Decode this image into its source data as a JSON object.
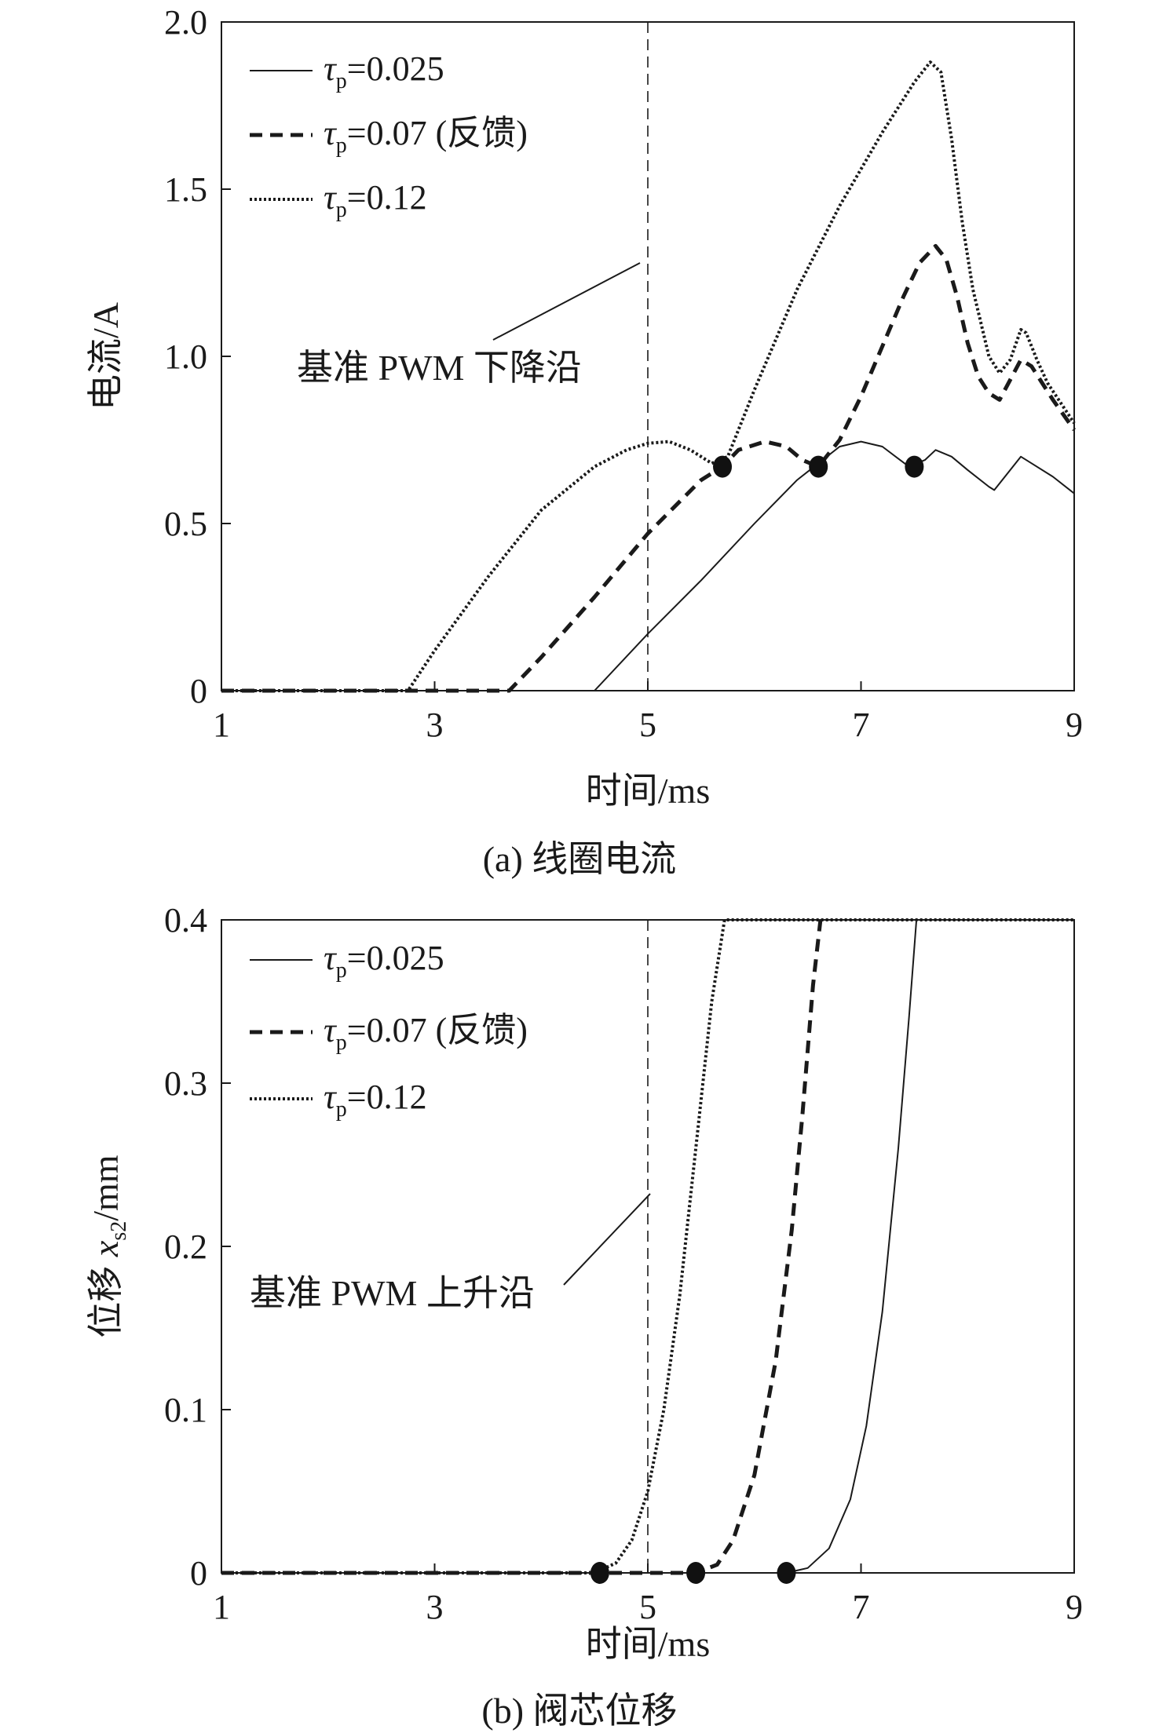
{
  "chart_data": [
    {
      "type": "line",
      "caption": "(a) 线圈电流",
      "xlabel": "时间/ms",
      "ylabel": "电流/A",
      "xlim": [
        1,
        9
      ],
      "ylim": [
        0,
        2.0
      ],
      "xticks": [
        1,
        3,
        5,
        7,
        9
      ],
      "xtick_labels": [
        "1",
        "3",
        "5",
        "7",
        "9"
      ],
      "yticks": [
        0,
        0.5,
        1.0,
        1.5,
        2.0
      ],
      "ytick_labels": [
        "0",
        "0.5",
        "1.0",
        "1.5",
        "2.0"
      ],
      "reference_line": {
        "x": 5,
        "label": "基准 PWM 下降沿"
      },
      "legend_position": "top-left",
      "series": [
        {
          "name": "τp=0.025",
          "legend_tau": "τ",
          "legend_sub": "p",
          "legend_rest": "=0.025",
          "style": "solid",
          "x": [
            1,
            4.5,
            5,
            5.5,
            6,
            6.4,
            6.6,
            6.8,
            7.0,
            7.2,
            7.45,
            7.6,
            7.7,
            7.85,
            8.0,
            8.2,
            8.25,
            8.4,
            8.5,
            8.6,
            8.8,
            9.0
          ],
          "y": [
            0,
            0,
            0.17,
            0.33,
            0.5,
            0.63,
            0.68,
            0.73,
            0.745,
            0.73,
            0.67,
            0.69,
            0.72,
            0.7,
            0.66,
            0.61,
            0.6,
            0.66,
            0.7,
            0.68,
            0.64,
            0.59
          ]
        },
        {
          "name": "τp=0.07 (反馈)",
          "legend_tau": "τ",
          "legend_sub": "p",
          "legend_rest": "=0.07 (反馈)",
          "style": "dashed",
          "x": [
            1,
            3.7,
            4.0,
            4.5,
            5.0,
            5.5,
            5.7,
            5.85,
            6.1,
            6.3,
            6.45,
            6.6,
            6.8,
            7.0,
            7.2,
            7.4,
            7.55,
            7.7,
            7.8,
            7.9,
            8.0,
            8.1,
            8.2,
            8.3,
            8.4,
            8.5,
            8.6,
            8.7,
            8.8,
            9.0
          ],
          "y": [
            0,
            0,
            0.1,
            0.28,
            0.47,
            0.63,
            0.67,
            0.72,
            0.745,
            0.73,
            0.69,
            0.67,
            0.75,
            0.88,
            1.03,
            1.18,
            1.28,
            1.33,
            1.29,
            1.18,
            1.04,
            0.94,
            0.89,
            0.87,
            0.93,
            0.99,
            0.97,
            0.92,
            0.87,
            0.78
          ]
        },
        {
          "name": "τp=0.12",
          "legend_tau": "τ",
          "legend_sub": "p",
          "legend_rest": "=0.12",
          "style": "dotted",
          "x": [
            1,
            2.75,
            3.0,
            3.5,
            4.0,
            4.5,
            4.8,
            5.0,
            5.2,
            5.4,
            5.6,
            5.75,
            6.0,
            6.4,
            6.8,
            7.2,
            7.5,
            7.65,
            7.75,
            7.85,
            7.95,
            8.05,
            8.2,
            8.3,
            8.4,
            8.5,
            8.55,
            8.65,
            8.75,
            9.0
          ],
          "y": [
            0,
            0,
            0.12,
            0.34,
            0.54,
            0.67,
            0.72,
            0.74,
            0.745,
            0.72,
            0.68,
            0.7,
            0.9,
            1.2,
            1.45,
            1.67,
            1.82,
            1.88,
            1.85,
            1.65,
            1.4,
            1.2,
            1.0,
            0.95,
            0.99,
            1.08,
            1.07,
            0.99,
            0.92,
            0.8
          ]
        }
      ],
      "markers": [
        {
          "x": 5.7,
          "y": 0.67
        },
        {
          "x": 6.6,
          "y": 0.67
        },
        {
          "x": 7.5,
          "y": 0.67
        }
      ]
    },
    {
      "type": "line",
      "caption": "(b) 阀芯位移",
      "xlabel": "时间/ms",
      "ylabel": "位移 xs2/mm",
      "ylabel_main": "位移 ",
      "ylabel_var": "x",
      "ylabel_sub": "s2",
      "ylabel_unit": "/mm",
      "xlim": [
        1,
        9
      ],
      "ylim": [
        0,
        0.4
      ],
      "xticks": [
        1,
        3,
        5,
        7,
        9
      ],
      "xtick_labels": [
        "1",
        "3",
        "5",
        "7",
        "9"
      ],
      "yticks": [
        0,
        0.1,
        0.2,
        0.3,
        0.4
      ],
      "ytick_labels": [
        "0",
        "0.1",
        "0.2",
        "0.3",
        "0.4"
      ],
      "reference_line": {
        "x": 5,
        "label": "基准 PWM 上升沿"
      },
      "legend_position": "top-left",
      "series": [
        {
          "name": "τp=0.025",
          "legend_tau": "τ",
          "legend_sub": "p",
          "legend_rest": "=0.025",
          "style": "solid",
          "x": [
            1,
            6.3,
            6.5,
            6.7,
            6.9,
            7.05,
            7.2,
            7.35,
            7.45,
            7.52,
            9.0
          ],
          "y": [
            0,
            0,
            0.003,
            0.015,
            0.045,
            0.09,
            0.16,
            0.26,
            0.34,
            0.4,
            0.4
          ]
        },
        {
          "name": "τp=0.07 (反馈)",
          "legend_tau": "τ",
          "legend_sub": "p",
          "legend_rest": "=0.07 (反馈)",
          "style": "dashed",
          "x": [
            1,
            5.45,
            5.65,
            5.8,
            6.0,
            6.2,
            6.35,
            6.45,
            6.55,
            6.62
          ],
          "y": [
            0,
            0,
            0.005,
            0.02,
            0.06,
            0.13,
            0.21,
            0.28,
            0.36,
            0.4
          ]
        },
        {
          "name": "τp=0.12",
          "legend_tau": "τ",
          "legend_sub": "p",
          "legend_rest": "=0.12",
          "style": "dotted",
          "x": [
            1,
            4.5,
            4.7,
            4.85,
            5.0,
            5.15,
            5.3,
            5.45,
            5.6,
            5.72,
            9.0
          ],
          "y": [
            0,
            0,
            0.006,
            0.02,
            0.05,
            0.1,
            0.17,
            0.26,
            0.35,
            0.4,
            0.4
          ]
        }
      ],
      "markers": [
        {
          "x": 4.55,
          "y": 0
        },
        {
          "x": 5.45,
          "y": 0
        },
        {
          "x": 6.3,
          "y": 0
        }
      ]
    }
  ]
}
